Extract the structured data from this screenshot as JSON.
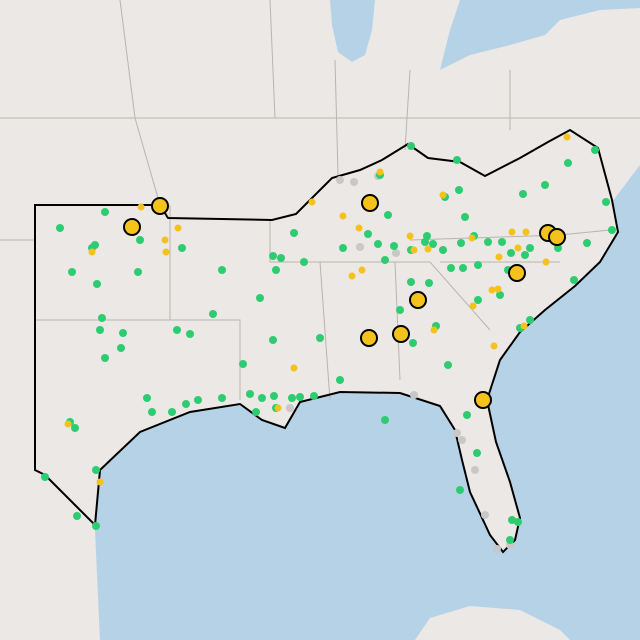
{
  "map": {
    "colors": {
      "active": "#2ecc71",
      "alert": "#f5c21b",
      "offline": "#c8c8c8",
      "outline": "#000000"
    }
  }
}
